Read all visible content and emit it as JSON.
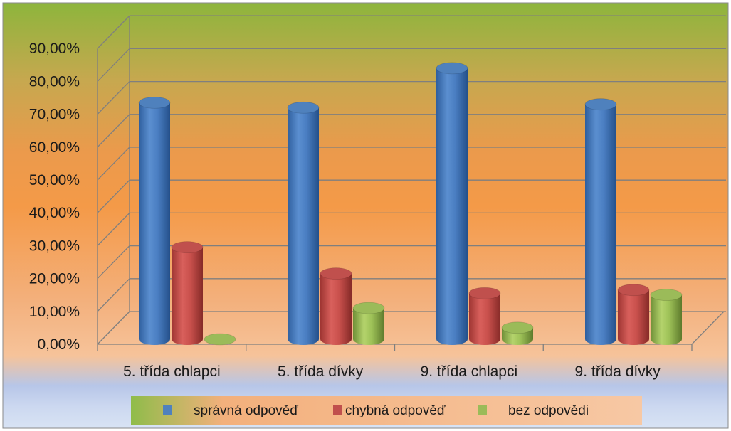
{
  "chart_data": {
    "type": "bar",
    "variant": "3d-cylinder",
    "title": "",
    "xlabel": "",
    "ylabel": "",
    "categories": [
      "5. třída chlapci",
      "5. třída dívky",
      "9. třída chlapci",
      "9. třída dívky"
    ],
    "series": [
      {
        "name": "správná odpověď",
        "color": "#4f81bd",
        "values": [
          72.0,
          70.5,
          82.5,
          71.5
        ]
      },
      {
        "name": "chybná odpověď",
        "color": "#c0504d",
        "values": [
          28.0,
          20.0,
          14.0,
          15.0
        ]
      },
      {
        "name": "bez odpovědi",
        "color": "#9bbb59",
        "values": [
          0.0,
          9.5,
          3.5,
          13.5
        ]
      }
    ],
    "yticks": [
      "0,00%",
      "10,00%",
      "20,00%",
      "30,00%",
      "40,00%",
      "50,00%",
      "60,00%",
      "70,00%",
      "80,00%",
      "90,00%"
    ],
    "ylim": [
      0,
      90
    ],
    "grid": true,
    "legend_position": "bottom",
    "background": "gradient green-orange-blue"
  }
}
